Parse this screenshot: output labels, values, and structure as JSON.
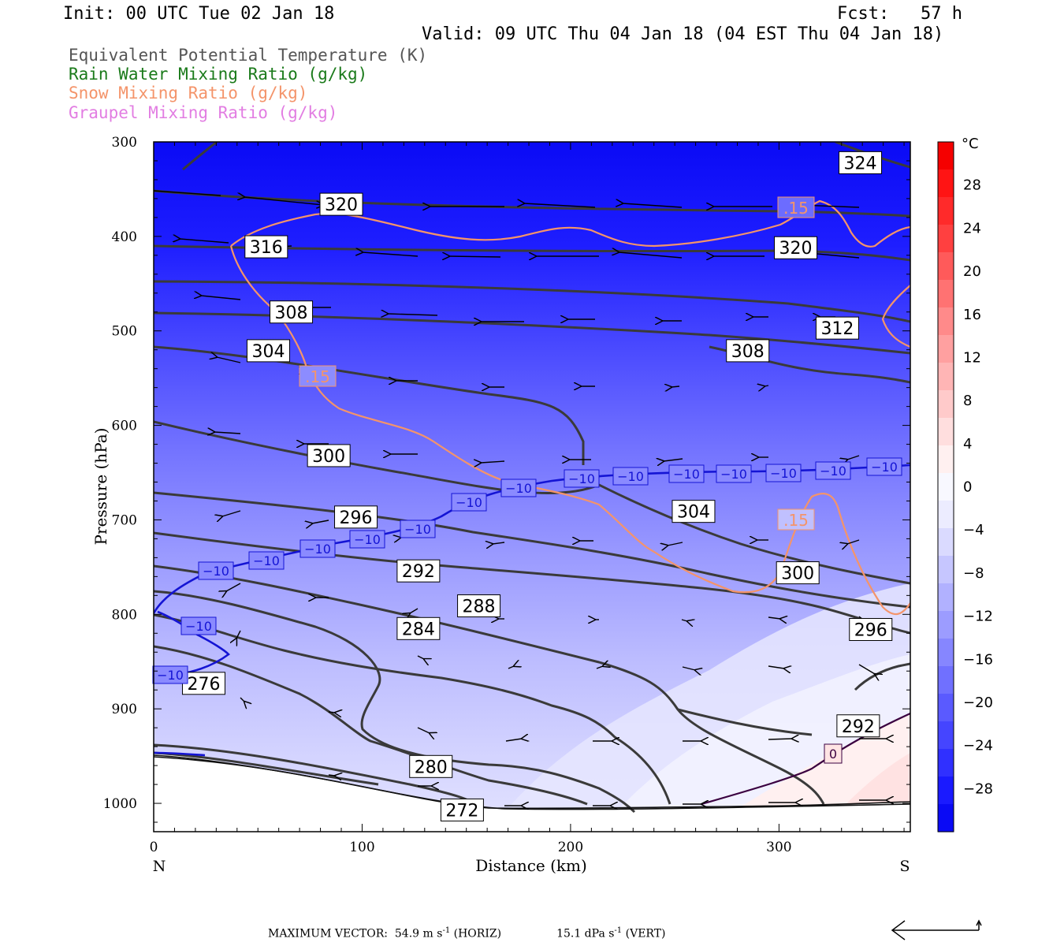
{
  "header": {
    "init": "Init: 00 UTC Tue 02 Jan 18",
    "fcst": "Fcst:   57 h",
    "valid": "Valid: 09 UTC Thu 04 Jan 18 (04 EST Thu 04 Jan 18)"
  },
  "legend": [
    {
      "label": "Equivalent Potential Temperature (K)",
      "color": "#555555"
    },
    {
      "label": "Rain Water Mixing Ratio (g/kg)",
      "color": "#1a7a1a"
    },
    {
      "label": "Snow Mixing Ratio (g/kg)",
      "color": "#f4946a"
    },
    {
      "label": "Graupel Mixing Ratio (g/kg)",
      "color": "#e27de2"
    }
  ],
  "footer": {
    "max_vector_label": "MAXIMUM VECTOR:",
    "horiz_value": "54.9 m s",
    "horiz_exp": "-1",
    "horiz_tag": "(HORIZ)",
    "vert_value": "15.1 dPa s",
    "vert_exp": "-1",
    "vert_tag": "(VERT)"
  },
  "chart_data": {
    "type": "cross-section",
    "xlabel": "Distance (km)",
    "ylabel": "Pressure (hPa)",
    "xlim": [
      0,
      363
    ],
    "ylim": [
      1030,
      300
    ],
    "x_ticks": [
      0,
      100,
      200,
      300
    ],
    "y_ticks": [
      300,
      400,
      500,
      600,
      700,
      800,
      900,
      1000
    ],
    "x_end_labels": {
      "left": "N",
      "right": "S"
    },
    "colorbar": {
      "unit": "°C",
      "tick_labels": [
        "28",
        "24",
        "20",
        "16",
        "12",
        "8",
        "4",
        "0",
        "−4",
        "−8",
        "−12",
        "−16",
        "−20",
        "−24",
        "−28"
      ],
      "tick_values": [
        28,
        24,
        20,
        16,
        12,
        8,
        4,
        0,
        -4,
        -8,
        -12,
        -16,
        -20,
        -24,
        -28
      ],
      "range": [
        -32,
        32
      ],
      "colors": [
        "#0a0af5",
        "#1a1aff",
        "#3030ff",
        "#4545ff",
        "#5a5aff",
        "#7070ff",
        "#8686ff",
        "#9c9cff",
        "#b1b1ff",
        "#c6c6ff",
        "#dadaff",
        "#ececff",
        "#f8f8ff",
        "#fff0f0",
        "#ffdede",
        "#ffcaca",
        "#ffb5b5",
        "#ffa0a0",
        "#ff8a8a",
        "#ff7272",
        "#ff5a5a",
        "#ff4040",
        "#ff2a2a",
        "#ff1414",
        "#f50000"
      ]
    },
    "theta_e_labels": [
      {
        "text": "324",
        "x": 339,
        "p": 322
      },
      {
        "text": "320",
        "x": 90,
        "p": 366
      },
      {
        "text": "320",
        "x": 308,
        "p": 412
      },
      {
        "text": "316",
        "x": 54,
        "p": 411
      },
      {
        "text": "312",
        "x": 328,
        "p": 497
      },
      {
        "text": "308",
        "x": 66,
        "p": 480
      },
      {
        "text": "308",
        "x": 285,
        "p": 521
      },
      {
        "text": "304",
        "x": 55,
        "p": 521
      },
      {
        "text": "304",
        "x": 259,
        "p": 691
      },
      {
        "text": "300",
        "x": 84,
        "p": 632
      },
      {
        "text": "300",
        "x": 309,
        "p": 756
      },
      {
        "text": "296",
        "x": 97,
        "p": 697
      },
      {
        "text": "296",
        "x": 344,
        "p": 816
      },
      {
        "text": "292",
        "x": 127,
        "p": 754
      },
      {
        "text": "292",
        "x": 338,
        "p": 918
      },
      {
        "text": "288",
        "x": 156,
        "p": 791
      },
      {
        "text": "284",
        "x": 127,
        "p": 815
      },
      {
        "text": "280",
        "x": 133,
        "p": 961
      },
      {
        "text": "276",
        "x": 24,
        "p": 873
      },
      {
        "text": "272",
        "x": 148,
        "p": 1007
      }
    ],
    "temperature_labels": [
      {
        "text": "−10",
        "x": 1122,
        "p": 1130
      },
      {
        "text": "−10",
        "x": 1057,
        "p": 1130
      },
      {
        "text": "−10",
        "x": 994,
        "p": 1130
      },
      {
        "text": "−10",
        "x": 931,
        "p": 1130
      },
      {
        "text": "−10",
        "x": 871,
        "p": 1130
      },
      {
        "text": "−10",
        "x": 800,
        "p": 1130
      },
      {
        "text": "−10",
        "x": 738,
        "p": 1130
      },
      {
        "text": "−10",
        "x": 658,
        "p": 1130
      },
      {
        "text": "−10",
        "x": 595,
        "p": 1130
      },
      {
        "text": "−10",
        "x": 530,
        "p": 1130
      },
      {
        "text": "−10",
        "x": 466,
        "p": 1130
      },
      {
        "text": "−10",
        "x": 403,
        "p": 1130
      },
      {
        "text": "−10",
        "x": 338,
        "p": 1130
      },
      {
        "text": "−10",
        "x": 274,
        "p": 1130
      },
      {
        "text": "−10",
        "x": 252,
        "p": 1130
      },
      {
        "text": "−10",
        "x": 216,
        "p": 1130
      },
      {
        "text": "0",
        "x": 1056,
        "p": 1130
      }
    ],
    "snow_labels": [
      ".15",
      ".15",
      ".15"
    ]
  }
}
